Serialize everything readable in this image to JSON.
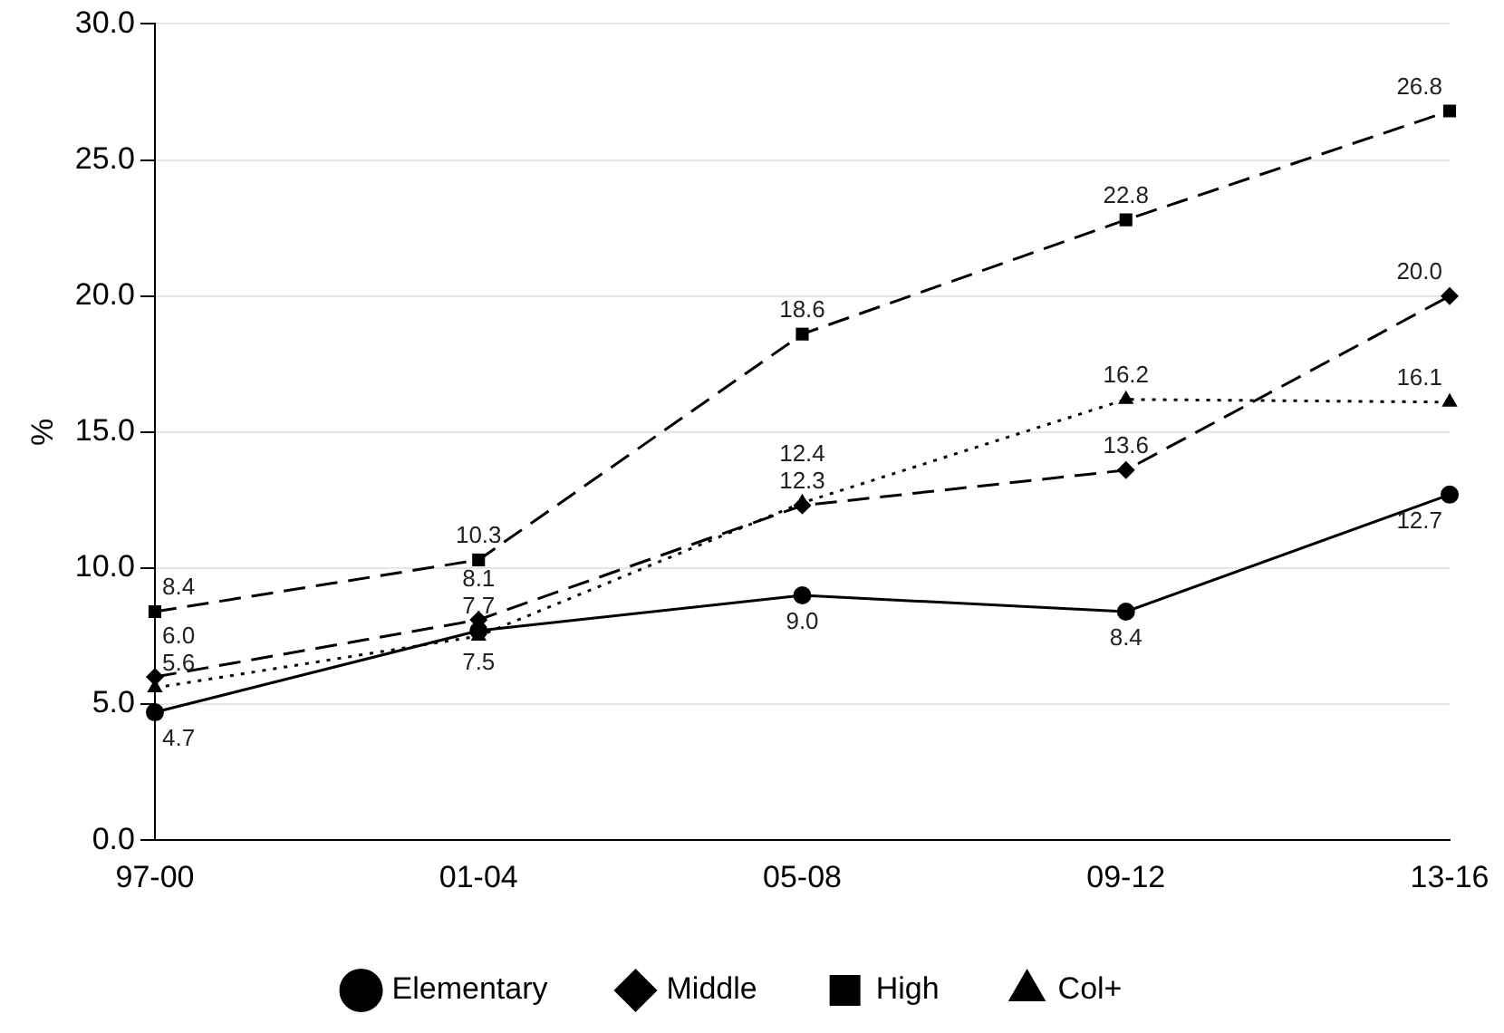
{
  "chart_data": {
    "type": "line",
    "ylabel": "%",
    "categories": [
      "97-00",
      "01-04",
      "05-08",
      "09-12",
      "13-16"
    ],
    "ylim": [
      0,
      30
    ],
    "yticks": [
      {
        "value": 0,
        "label": "0.0"
      },
      {
        "value": 5,
        "label": "5.0"
      },
      {
        "value": 10,
        "label": "10.0"
      },
      {
        "value": 15,
        "label": "15.0"
      },
      {
        "value": 20,
        "label": "20.0"
      },
      {
        "value": 25,
        "label": "25.0"
      },
      {
        "value": 30,
        "label": "30.0"
      }
    ],
    "grid": "y",
    "legend": "bottom",
    "series": [
      {
        "name": "Elementary",
        "color": "#000000",
        "marker": "circle",
        "line_style": "solid",
        "values": [
          4.7,
          7.7,
          9.0,
          8.4,
          12.7
        ],
        "value_labels": [
          "4.7",
          "7.7",
          "9.0",
          "8.4",
          "12.7"
        ]
      },
      {
        "name": "Middle",
        "color": "#000000",
        "marker": "diamond",
        "line_style": "dashed",
        "values": [
          6.0,
          8.1,
          12.3,
          13.6,
          20.0
        ],
        "value_labels": [
          "6.0",
          "8.1",
          "12.3",
          "13.6",
          "20.0"
        ]
      },
      {
        "name": "High",
        "color": "#000000",
        "marker": "square",
        "line_style": "dashed",
        "values": [
          8.4,
          10.3,
          18.6,
          22.8,
          26.8
        ],
        "value_labels": [
          "8.4",
          "10.3",
          "18.6",
          "22.8",
          "26.8"
        ]
      },
      {
        "name": "Col+",
        "color": "#000000",
        "marker": "triangle",
        "line_style": "dotted",
        "values": [
          5.6,
          7.5,
          12.4,
          16.2,
          16.1
        ],
        "value_labels": [
          "5.6",
          "7.5",
          "12.4",
          "16.2",
          "16.1"
        ]
      }
    ]
  }
}
